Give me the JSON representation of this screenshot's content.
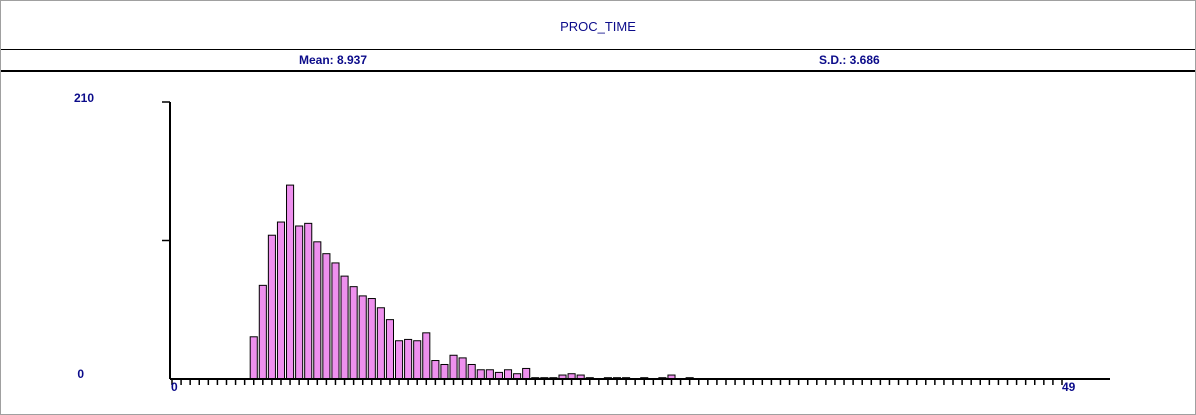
{
  "title": "PROC_TIME",
  "stats": {
    "mean_label": "Mean: 8.937",
    "sd_label": "S.D.: 3.686"
  },
  "colors": {
    "bar_fill": "#ee90ee",
    "bar_stroke": "#000000",
    "text": "#0b0b8a",
    "axis": "#000000"
  },
  "chart_data": {
    "type": "bar",
    "title": "PROC_TIME",
    "xlabel": "",
    "ylabel": "",
    "ylim": [
      0,
      210
    ],
    "xlim": [
      0,
      49
    ],
    "y_tick_labels": [
      "210",
      "0"
    ],
    "x_tick_labels": [
      "0",
      "49"
    ],
    "grid": false,
    "bin_width": 0.5,
    "x": [
      4.5,
      5,
      5.5,
      6,
      6.5,
      7,
      7.5,
      8,
      8.5,
      9,
      9.5,
      10,
      10.5,
      11,
      11.5,
      12,
      12.5,
      13,
      13.5,
      14,
      14.5,
      15,
      15.5,
      16,
      16.5,
      17,
      17.5,
      18,
      18.5,
      19,
      19.5,
      20,
      20.5,
      21,
      21.5,
      22,
      22.5,
      23,
      23.5,
      24,
      24.5,
      25,
      25.5,
      26,
      26.5,
      27,
      27.5,
      28,
      28.5,
      29
    ],
    "values": [
      32,
      71,
      109,
      119,
      147,
      116,
      118,
      104,
      95,
      88,
      78,
      70,
      63,
      61,
      54,
      45,
      29,
      30,
      29,
      35,
      14,
      11,
      18,
      16,
      11,
      7,
      7,
      5,
      7,
      4,
      8,
      1,
      1,
      1,
      3,
      4,
      3,
      1,
      0,
      1,
      1,
      1,
      0,
      1,
      0,
      1,
      3,
      0,
      1,
      0
    ]
  }
}
